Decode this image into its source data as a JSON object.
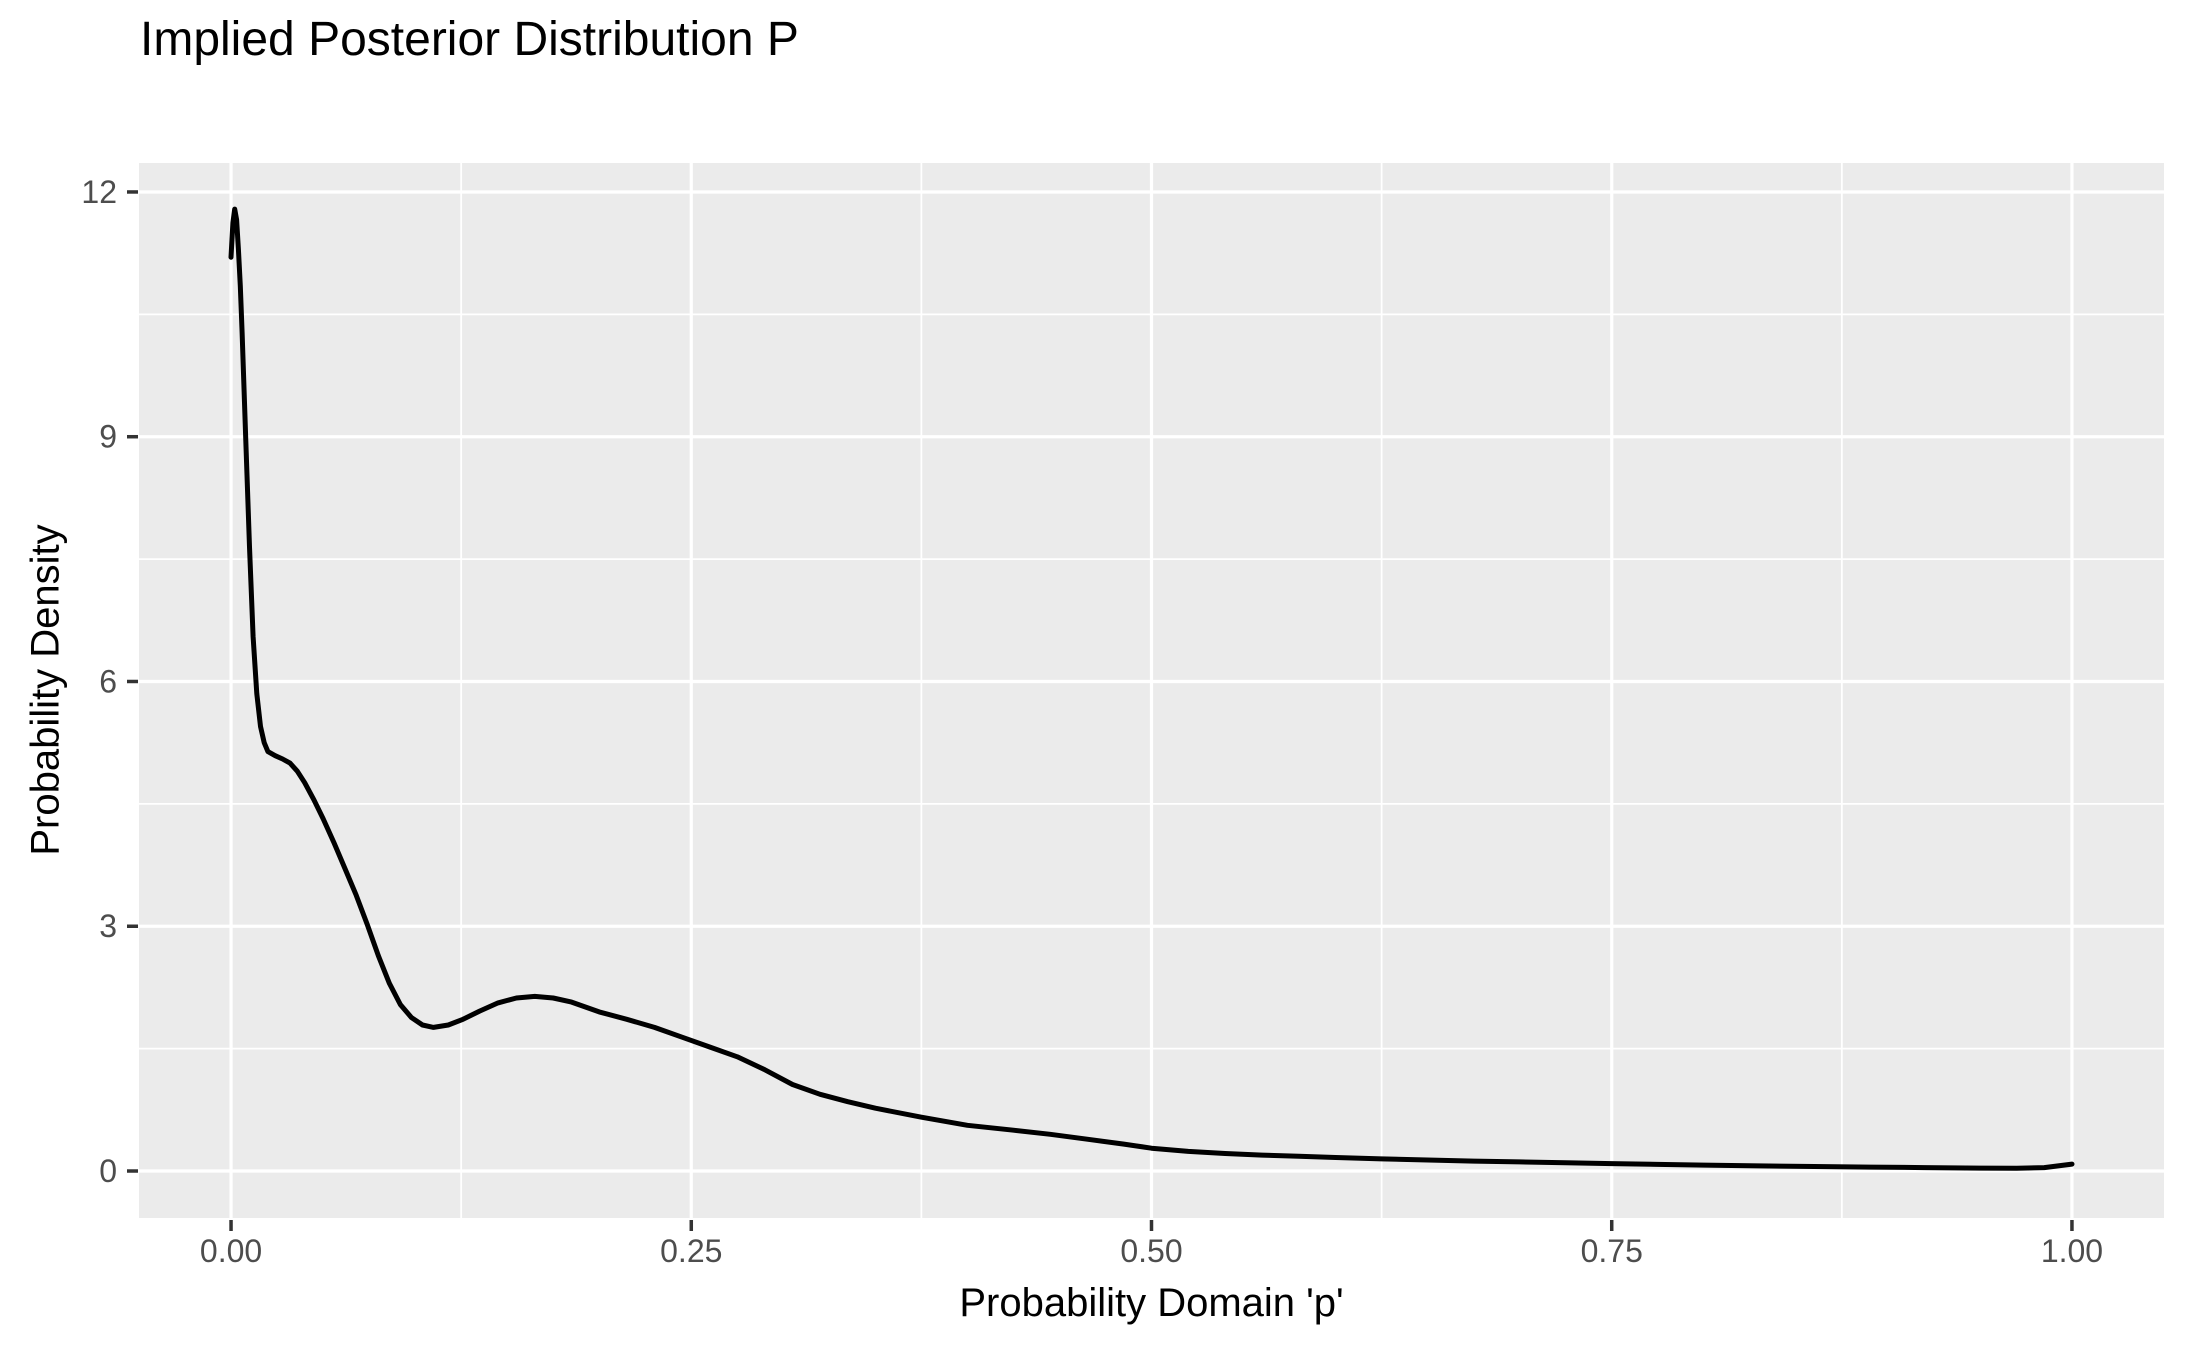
{
  "chart": {
    "title": "Implied Posterior Distribution P",
    "x_axis_label": "Probability Domain 'p'",
    "y_axis_label": "Probability Density"
  },
  "chart_data": {
    "type": "line",
    "title": "Implied Posterior Distribution P",
    "xlabel": "Probability Domain 'p'",
    "ylabel": "Probability Density",
    "x_ticks": {
      "values": [
        0,
        0.25,
        0.5,
        0.75,
        1
      ],
      "labels": [
        "0.00",
        "0.25",
        "0.50",
        "0.75",
        "1.00"
      ]
    },
    "y_ticks": {
      "values": [
        0,
        3,
        6,
        9,
        12
      ],
      "labels": [
        "0",
        "3",
        "6",
        "9",
        "12"
      ]
    },
    "x_minor_ticks": [
      0.125,
      0.375,
      0.625,
      0.875
    ],
    "y_minor_ticks": [
      1.5,
      4.5,
      7.5,
      10.5
    ],
    "xlim": [
      -0.05,
      1.05
    ],
    "ylim": [
      -0.576,
      12.355
    ],
    "grid": true,
    "legend": "none",
    "theme": {
      "panel_background": "#EBEBEB",
      "grid_color": "#FFFFFF",
      "tick_label_color": "#4D4D4D",
      "tick_mark_color": "#333333",
      "title_color": "#000000",
      "line_color": "#000000",
      "page_background": "#FFFFFF"
    },
    "series": [
      {
        "name": "posterior_density_curve",
        "color": "#000000",
        "points": [
          [
            0.0,
            11.2
          ],
          [
            0.001,
            11.62
          ],
          [
            0.002,
            11.79
          ],
          [
            0.003,
            11.66
          ],
          [
            0.004,
            11.3
          ],
          [
            0.005,
            10.85
          ],
          [
            0.006,
            10.28
          ],
          [
            0.008,
            8.95
          ],
          [
            0.01,
            7.65
          ],
          [
            0.012,
            6.55
          ],
          [
            0.014,
            5.85
          ],
          [
            0.016,
            5.45
          ],
          [
            0.018,
            5.25
          ],
          [
            0.02,
            5.14
          ],
          [
            0.024,
            5.09
          ],
          [
            0.028,
            5.05
          ],
          [
            0.032,
            5.0
          ],
          [
            0.036,
            4.9
          ],
          [
            0.04,
            4.76
          ],
          [
            0.045,
            4.55
          ],
          [
            0.05,
            4.32
          ],
          [
            0.056,
            4.02
          ],
          [
            0.062,
            3.7
          ],
          [
            0.068,
            3.38
          ],
          [
            0.074,
            3.02
          ],
          [
            0.08,
            2.64
          ],
          [
            0.086,
            2.3
          ],
          [
            0.092,
            2.04
          ],
          [
            0.098,
            1.88
          ],
          [
            0.104,
            1.79
          ],
          [
            0.11,
            1.76
          ],
          [
            0.118,
            1.79
          ],
          [
            0.126,
            1.86
          ],
          [
            0.135,
            1.96
          ],
          [
            0.145,
            2.06
          ],
          [
            0.155,
            2.12
          ],
          [
            0.165,
            2.14
          ],
          [
            0.175,
            2.12
          ],
          [
            0.185,
            2.07
          ],
          [
            0.2,
            1.95
          ],
          [
            0.215,
            1.86
          ],
          [
            0.23,
            1.76
          ],
          [
            0.245,
            1.64
          ],
          [
            0.26,
            1.52
          ],
          [
            0.275,
            1.4
          ],
          [
            0.29,
            1.24
          ],
          [
            0.305,
            1.06
          ],
          [
            0.32,
            0.94
          ],
          [
            0.335,
            0.85
          ],
          [
            0.35,
            0.77
          ],
          [
            0.375,
            0.66
          ],
          [
            0.4,
            0.56
          ],
          [
            0.425,
            0.5
          ],
          [
            0.445,
            0.45
          ],
          [
            0.465,
            0.39
          ],
          [
            0.485,
            0.33
          ],
          [
            0.5,
            0.28
          ],
          [
            0.52,
            0.24
          ],
          [
            0.54,
            0.215
          ],
          [
            0.56,
            0.195
          ],
          [
            0.58,
            0.18
          ],
          [
            0.6,
            0.165
          ],
          [
            0.625,
            0.148
          ],
          [
            0.65,
            0.135
          ],
          [
            0.675,
            0.122
          ],
          [
            0.7,
            0.112
          ],
          [
            0.725,
            0.101
          ],
          [
            0.75,
            0.091
          ],
          [
            0.775,
            0.081
          ],
          [
            0.8,
            0.072
          ],
          [
            0.83,
            0.063
          ],
          [
            0.86,
            0.055
          ],
          [
            0.89,
            0.048
          ],
          [
            0.92,
            0.042
          ],
          [
            0.95,
            0.036
          ],
          [
            0.97,
            0.034
          ],
          [
            0.985,
            0.042
          ],
          [
            1.0,
            0.085
          ]
        ]
      }
    ]
  }
}
